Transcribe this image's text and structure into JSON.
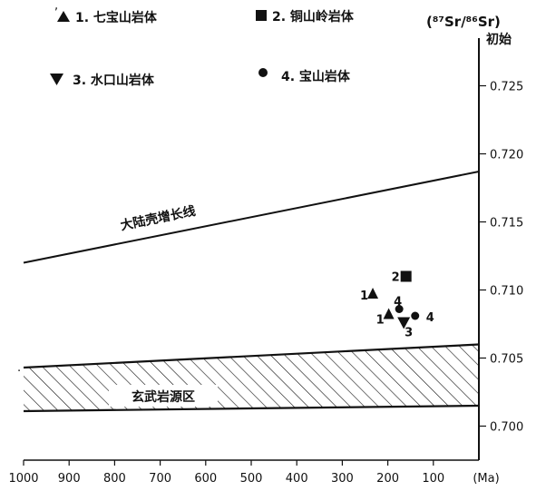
{
  "chart_data": {
    "type": "scatter",
    "title": "",
    "xlabel": "",
    "x_unit": "(Ma)",
    "x_ticks": [
      1000,
      900,
      800,
      700,
      600,
      500,
      400,
      300,
      200,
      100
    ],
    "x_tick_labels": [
      "1000",
      "900",
      "800",
      "700",
      "600",
      "500",
      "400",
      "300",
      "200",
      "100"
    ],
    "xlim": [
      1000,
      0
    ],
    "ylabel": "(⁸⁷Sr/⁸⁶Sr)",
    "ylabel_sub": "初始",
    "y_axis_side": "right",
    "y_ticks": [
      0.7,
      0.705,
      0.71,
      0.715,
      0.72,
      0.725
    ],
    "y_tick_labels": [
      "0.700",
      "0.705",
      "0.710",
      "0.715",
      "0.720",
      "0.725"
    ],
    "ylim": [
      0.6975,
      0.7285
    ],
    "grid": false,
    "legend_position": "top",
    "legend": [
      {
        "marker": "triangle-up",
        "text": "1. 七宝山岩体"
      },
      {
        "marker": "square",
        "text": "2. 铜山岭岩体"
      },
      {
        "marker": "triangle-down",
        "text": "3. 水口山岩体"
      },
      {
        "marker": "circle",
        "text": "4. 宝山岩体"
      }
    ],
    "series": [
      {
        "name": "1. 七宝山岩体",
        "marker": "triangle-up",
        "points": [
          [
            233,
            0.7097
          ],
          [
            198,
            0.7082
          ]
        ]
      },
      {
        "name": "2. 铜山岭岩体",
        "marker": "square",
        "points": [
          [
            160,
            0.711
          ]
        ]
      },
      {
        "name": "3. 水口山岩体",
        "marker": "triangle-down",
        "points": [
          [
            165,
            0.7076
          ]
        ]
      },
      {
        "name": "4. 宝山岩体",
        "marker": "circle",
        "points": [
          [
            175,
            0.7086
          ],
          [
            140,
            0.7081
          ]
        ]
      }
    ],
    "point_labels": [
      {
        "text": "1",
        "x": 233,
        "y": 0.7097
      },
      {
        "text": "1",
        "x": 198,
        "y": 0.7082
      },
      {
        "text": "2",
        "x": 160,
        "y": 0.711
      },
      {
        "text": "3",
        "x": 165,
        "y": 0.7076
      },
      {
        "text": "4",
        "x": 175,
        "y": 0.7086
      },
      {
        "text": "4",
        "x": 140,
        "y": 0.7081
      }
    ],
    "crust_line": {
      "label": "大陆壳增长线",
      "x": [
        1000,
        0
      ],
      "y": [
        0.712,
        0.7187
      ]
    },
    "basalt_band": {
      "label": "玄武岩源区",
      "x": [
        1000,
        0
      ],
      "y_low": [
        0.7011,
        0.7015
      ],
      "y_high": [
        0.7043,
        0.706
      ]
    },
    "stray_marks": [
      ",",
      "·"
    ]
  }
}
